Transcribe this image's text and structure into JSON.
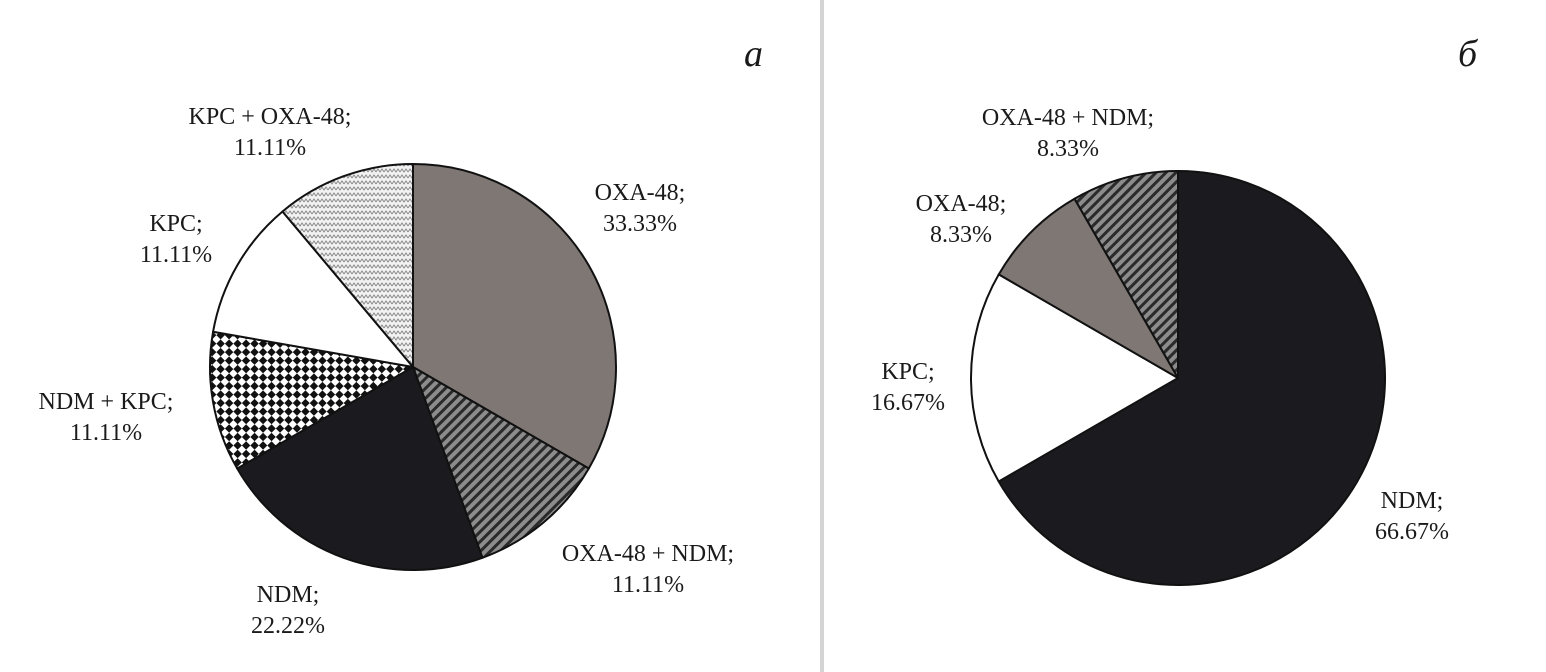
{
  "chart_data": [
    {
      "type": "pie",
      "panel_label": "а",
      "slices": [
        {
          "label": "OXA-48",
          "value": 33.33,
          "pct_label": "33.33%",
          "pattern": "solid-gray"
        },
        {
          "label": "OXA-48 + NDM",
          "value": 11.11,
          "pct_label": "11.11%",
          "pattern": "diagonal-stripes"
        },
        {
          "label": "NDM",
          "value": 22.22,
          "pct_label": "22.22%",
          "pattern": "solid-black"
        },
        {
          "label": "NDM + KPC",
          "value": 11.11,
          "pct_label": "11.11%",
          "pattern": "checkerboard"
        },
        {
          "label": "KPC",
          "value": 11.11,
          "pct_label": "11.11%",
          "pattern": "white"
        },
        {
          "label": "KPC + OXA-48",
          "value": 11.11,
          "pct_label": "11.11%",
          "pattern": "zigzag"
        }
      ]
    },
    {
      "type": "pie",
      "panel_label": "б",
      "slices": [
        {
          "label": "NDM",
          "value": 66.67,
          "pct_label": "66.67%",
          "pattern": "solid-black"
        },
        {
          "label": "KPC",
          "value": 16.67,
          "pct_label": "16.67%",
          "pattern": "white"
        },
        {
          "label": "OXA-48",
          "value": 8.33,
          "pct_label": "8.33%",
          "pattern": "solid-gray"
        },
        {
          "label": "OXA-48 + NDM",
          "value": 8.33,
          "pct_label": "8.33%",
          "pattern": "diagonal-stripes"
        }
      ]
    }
  ],
  "colors": {
    "gray": "#7e7774",
    "black": "#1b1a1e",
    "white": "#ffffff",
    "stroke": "#111111"
  }
}
